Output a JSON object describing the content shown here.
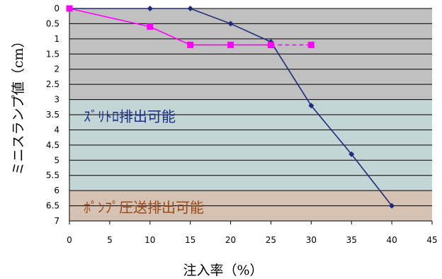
{
  "chart_data": {
    "type": "line",
    "xlabel": "注入率（%）",
    "ylabel": "ミニスランプ値（cm）",
    "xlim": [
      0,
      45
    ],
    "ylim": [
      0,
      7
    ],
    "y_inverted": true,
    "x_ticks": [
      "0",
      "5",
      "10",
      "15",
      "20",
      "25",
      "30",
      "35",
      "40",
      "45"
    ],
    "y_ticks": [
      "0",
      "0.5",
      "1",
      "1.5",
      "2",
      "2.5",
      "3",
      "3.5",
      "4",
      "4.5",
      "5",
      "5.5",
      "6",
      "6.5",
      "7"
    ],
    "grid": "horizontal",
    "legend": "none",
    "zones": [
      {
        "label": "",
        "from": 0,
        "to": 3,
        "color": "#c0c0c0"
      },
      {
        "label": "ｽﾞﾘﾄﾛ排出可能",
        "from": 3,
        "to": 6,
        "color": "#c3d6d5",
        "text_color": "#1a2f8c"
      },
      {
        "label": "ﾎﾟﾝﾌﾟ圧送排出可能",
        "from": 6,
        "to": 7,
        "color": "#d6c2b2",
        "text_color": "#9a4a1a"
      }
    ],
    "series": [
      {
        "color": "#1f2a7a",
        "marker": "diamond",
        "line_style": "solid",
        "points": [
          [
            0,
            0
          ],
          [
            10,
            0
          ],
          [
            15,
            0
          ],
          [
            20,
            0.5
          ],
          [
            25,
            1.1
          ],
          [
            30,
            3.2
          ],
          [
            35,
            4.8
          ],
          [
            40,
            6.5
          ]
        ]
      },
      {
        "color": "#ff00ff",
        "marker": "square",
        "line_style": "solid",
        "points": [
          [
            0,
            0
          ],
          [
            10,
            0.6
          ],
          [
            15,
            1.2
          ],
          [
            20,
            1.2
          ],
          [
            25,
            1.2
          ]
        ]
      },
      {
        "color": "#ff00ff",
        "marker": "square",
        "line_style": "dashed",
        "points": [
          [
            25,
            1.2
          ],
          [
            30,
            1.2
          ]
        ]
      }
    ]
  }
}
